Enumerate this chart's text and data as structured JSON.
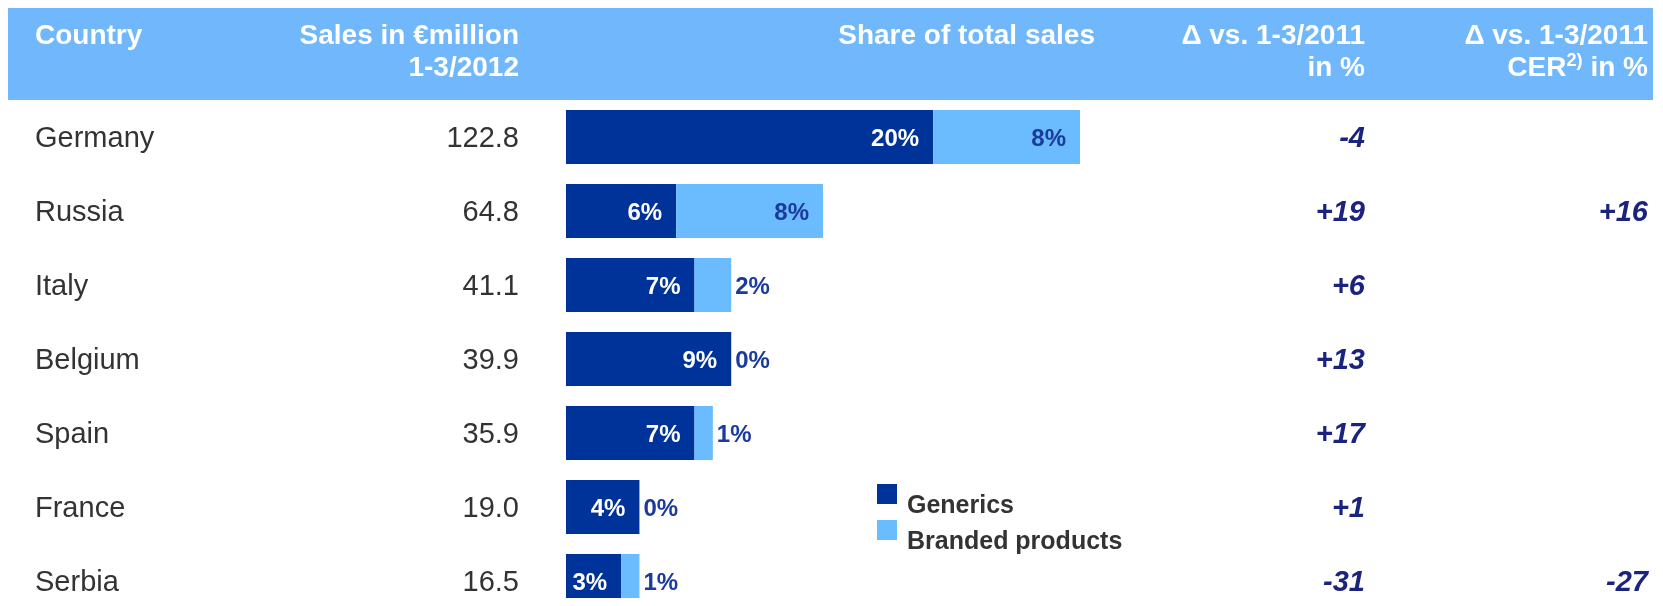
{
  "chart_data": {
    "type": "bar",
    "orientation": "horizontal",
    "stacked": true,
    "title": "Share of total sales",
    "ylabel": "Country",
    "categories": [
      "Germany",
      "Russia",
      "Italy",
      "Belgium",
      "Spain",
      "France",
      "Serbia"
    ],
    "series": [
      {
        "name": "Generics",
        "color": "#003399",
        "values": [
          20,
          6,
          7,
          9,
          7,
          4,
          3
        ],
        "value_labels": [
          "20%",
          "6%",
          "7%",
          "9%",
          "7%",
          "4%",
          "3%"
        ]
      },
      {
        "name": "Branded products",
        "color": "#6bbcff",
        "values": [
          8,
          8,
          2,
          0,
          1,
          0,
          1
        ],
        "value_labels": [
          "8%",
          "8%",
          "2%",
          "0%",
          "1%",
          "0%",
          "1%"
        ]
      }
    ],
    "legend": "bottom",
    "annotations": [
      "Sales in €million\n1-3/2012",
      "122.8",
      "64.8",
      "41.1",
      "39.9",
      "35.9",
      "19.0",
      "16.5",
      "Δ vs. 1-3/2011\nin %",
      "-4",
      "+19",
      "+6",
      "+13",
      "+17",
      "+1",
      "-31",
      "Δ vs. 1-3/2011\nCER$^{2)}$ in %",
      null,
      "+16",
      null,
      null,
      null,
      null,
      "-27"
    ]
  }
}
